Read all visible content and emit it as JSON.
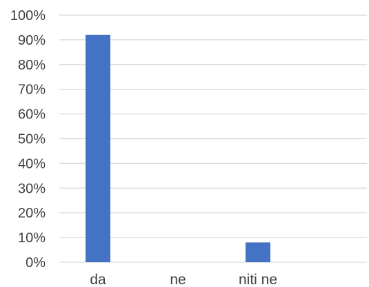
{
  "chart_data": {
    "type": "bar",
    "categories": [
      "da",
      "ne",
      "niti ne"
    ],
    "values": [
      0.92,
      0.0,
      0.08
    ],
    "ylim": [
      0,
      1
    ],
    "yticks": [
      0,
      0.1,
      0.2,
      0.3,
      0.4,
      0.5,
      0.6,
      0.7,
      0.8,
      0.9,
      1.0
    ],
    "ytick_labels": [
      "0%",
      "10%",
      "20%",
      "30%",
      "40%",
      "50%",
      "60%",
      "70%",
      "80%",
      "90%",
      "100%"
    ],
    "title": "",
    "xlabel": "",
    "ylabel": "",
    "grid": true,
    "legend": "none",
    "colors": {
      "bar": "#4472C4",
      "grid": "#D9D9D9",
      "text": "#404040"
    }
  }
}
